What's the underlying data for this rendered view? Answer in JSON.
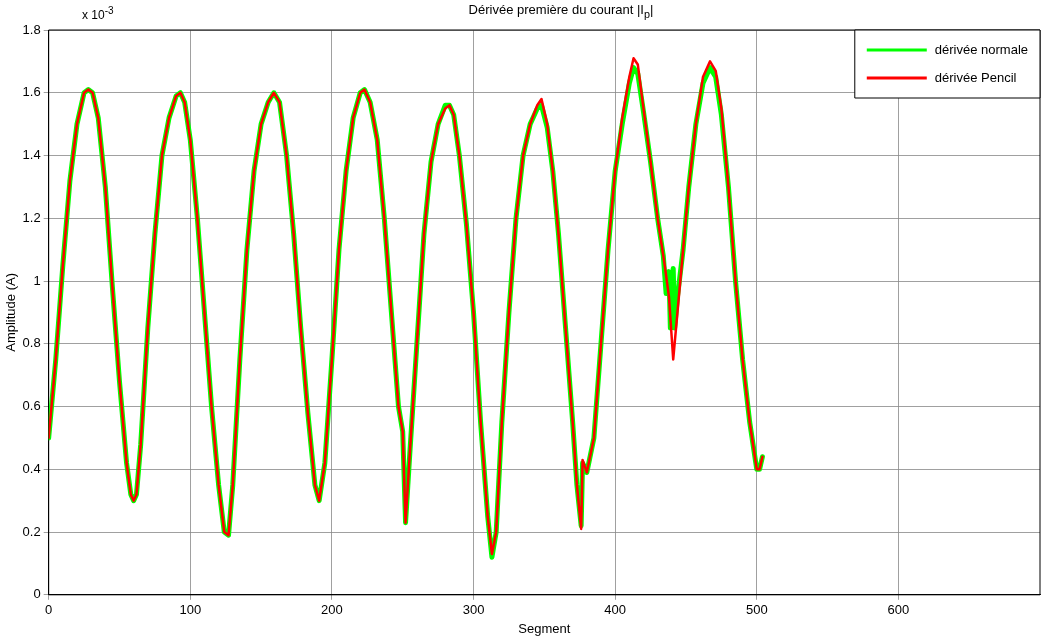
{
  "chart_data": {
    "type": "line",
    "title": "Dérivée première du courant |I$_{p}$|",
    "xlabel": "Segment",
    "ylabel": "Amplitude (A)",
    "annotations": [
      "x 10$^{-3}$"
    ],
    "xlim": [
      0,
      700
    ],
    "xticks": [
      0,
      100,
      200,
      300,
      400,
      500,
      600
    ],
    "ylim": [
      0,
      1.8
    ],
    "yticks": [
      0,
      0.2,
      0.4,
      0.6,
      0.8,
      1,
      1.2,
      1.4,
      1.6,
      1.8
    ],
    "grid": true,
    "legend": "top right",
    "marker": "none",
    "line_style": "solid",
    "series": [
      {
        "name": "dérivée normale",
        "color": "#00ff00",
        "x": [
          0,
          5,
          10,
          15,
          20,
          25,
          28,
          31,
          35,
          40,
          45,
          50,
          55,
          58,
          60,
          62,
          65,
          70,
          75,
          80,
          85,
          90,
          93,
          96,
          100,
          105,
          110,
          115,
          120,
          124,
          127,
          130,
          135,
          140,
          145,
          150,
          155,
          159,
          163,
          168,
          173,
          178,
          183,
          188,
          191,
          195,
          200,
          205,
          210,
          215,
          220,
          223,
          227,
          232,
          237,
          242,
          247,
          250,
          252,
          255,
          260,
          265,
          270,
          275,
          280,
          283,
          286,
          290,
          295,
          300,
          305,
          310,
          313,
          316,
          320,
          325,
          330,
          335,
          340,
          345,
          348,
          352,
          356,
          360,
          365,
          370,
          373,
          376,
          377,
          380,
          385,
          390,
          395,
          400,
          405,
          410,
          413,
          416,
          420,
          425,
          430,
          434,
          436,
          438,
          439,
          441,
          442,
          444,
          448,
          452,
          457,
          462,
          467,
          471,
          475,
          480,
          485,
          490,
          495,
          500,
          502,
          504
        ],
        "values": [
          0.5,
          0.75,
          1.05,
          1.32,
          1.5,
          1.6,
          1.61,
          1.6,
          1.52,
          1.3,
          0.98,
          0.68,
          0.42,
          0.32,
          0.3,
          0.32,
          0.48,
          0.85,
          1.15,
          1.4,
          1.52,
          1.59,
          1.6,
          1.57,
          1.45,
          1.2,
          0.9,
          0.6,
          0.35,
          0.2,
          0.19,
          0.35,
          0.75,
          1.1,
          1.35,
          1.5,
          1.57,
          1.6,
          1.57,
          1.4,
          1.15,
          0.85,
          0.58,
          0.35,
          0.3,
          0.42,
          0.75,
          1.1,
          1.35,
          1.52,
          1.6,
          1.61,
          1.57,
          1.45,
          1.2,
          0.9,
          0.6,
          0.52,
          0.23,
          0.45,
          0.8,
          1.15,
          1.38,
          1.5,
          1.56,
          1.56,
          1.53,
          1.4,
          1.18,
          0.9,
          0.55,
          0.25,
          0.12,
          0.2,
          0.55,
          0.9,
          1.2,
          1.4,
          1.5,
          1.55,
          1.56,
          1.49,
          1.35,
          1.15,
          0.85,
          0.55,
          0.35,
          0.22,
          0.42,
          0.39,
          0.5,
          0.8,
          1.1,
          1.35,
          1.5,
          1.63,
          1.68,
          1.66,
          1.54,
          1.38,
          1.2,
          1.08,
          0.96,
          1.03,
          0.85,
          1.04,
          0.85,
          0.95,
          1.1,
          1.3,
          1.5,
          1.63,
          1.68,
          1.65,
          1.53,
          1.3,
          1,
          0.75,
          0.55,
          0.4,
          0.4,
          0.44
        ]
      },
      {
        "name": "dérivée Pencil",
        "color": "#ff0000",
        "x": [
          0,
          5,
          10,
          15,
          20,
          25,
          28,
          31,
          35,
          40,
          45,
          50,
          55,
          58,
          60,
          62,
          65,
          70,
          75,
          80,
          85,
          90,
          93,
          96,
          100,
          105,
          110,
          115,
          120,
          124,
          127,
          130,
          135,
          140,
          145,
          150,
          155,
          159,
          163,
          168,
          173,
          178,
          183,
          188,
          191,
          195,
          200,
          205,
          210,
          215,
          220,
          223,
          227,
          232,
          237,
          242,
          247,
          250,
          252,
          255,
          260,
          265,
          270,
          275,
          280,
          283,
          286,
          290,
          295,
          300,
          305,
          310,
          313,
          316,
          320,
          325,
          330,
          335,
          340,
          345,
          348,
          352,
          356,
          360,
          365,
          370,
          373,
          376,
          377,
          380,
          385,
          390,
          395,
          400,
          405,
          410,
          413,
          416,
          420,
          425,
          430,
          435,
          438,
          441,
          444,
          448,
          452,
          457,
          462,
          467,
          471,
          475,
          480,
          485,
          490,
          495,
          500,
          502,
          504
        ],
        "values": [
          0.5,
          0.75,
          1.05,
          1.32,
          1.5,
          1.6,
          1.61,
          1.6,
          1.52,
          1.3,
          0.98,
          0.68,
          0.42,
          0.32,
          0.3,
          0.32,
          0.48,
          0.85,
          1.15,
          1.4,
          1.52,
          1.59,
          1.6,
          1.57,
          1.45,
          1.2,
          0.9,
          0.6,
          0.35,
          0.2,
          0.19,
          0.35,
          0.75,
          1.1,
          1.35,
          1.5,
          1.57,
          1.6,
          1.57,
          1.4,
          1.15,
          0.85,
          0.58,
          0.35,
          0.3,
          0.42,
          0.75,
          1.1,
          1.35,
          1.52,
          1.6,
          1.61,
          1.57,
          1.45,
          1.2,
          0.9,
          0.6,
          0.52,
          0.23,
          0.45,
          0.8,
          1.15,
          1.38,
          1.5,
          1.55,
          1.56,
          1.53,
          1.4,
          1.18,
          0.9,
          0.55,
          0.25,
          0.13,
          0.2,
          0.55,
          0.9,
          1.2,
          1.4,
          1.5,
          1.56,
          1.58,
          1.5,
          1.35,
          1.15,
          0.85,
          0.55,
          0.35,
          0.21,
          0.43,
          0.39,
          0.5,
          0.8,
          1.1,
          1.35,
          1.52,
          1.65,
          1.71,
          1.69,
          1.55,
          1.38,
          1.2,
          1.05,
          0.95,
          0.75,
          0.9,
          1.1,
          1.3,
          1.5,
          1.65,
          1.7,
          1.67,
          1.55,
          1.3,
          1,
          0.75,
          0.55,
          0.4,
          0.4,
          0.44
        ]
      }
    ]
  }
}
